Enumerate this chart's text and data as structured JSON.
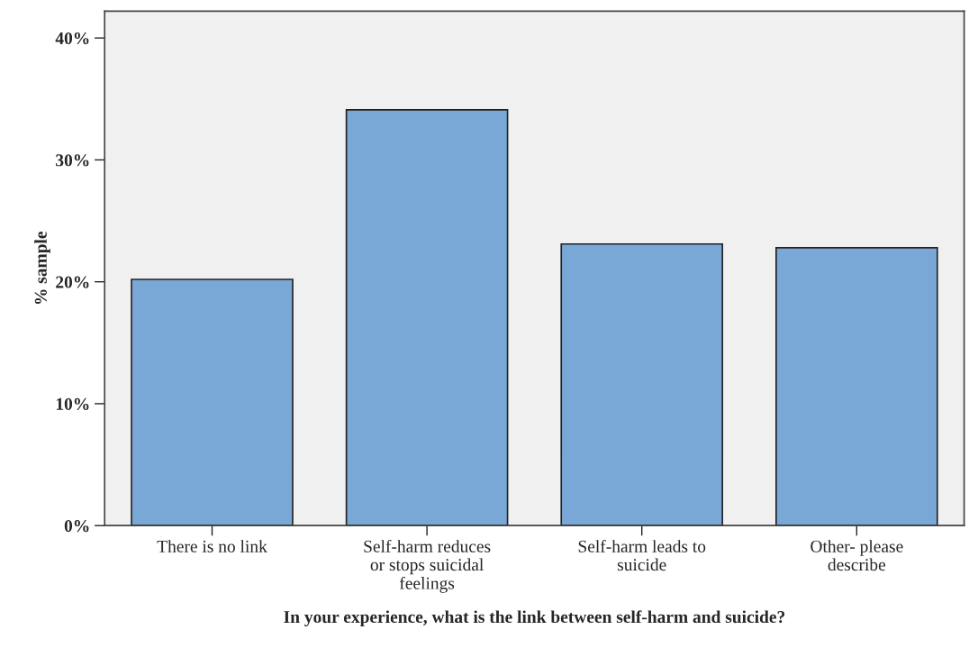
{
  "chart_data": {
    "type": "bar",
    "xlabel": "In your experience, what is the link between self-harm and suicide?",
    "ylabel": "% sample",
    "categories": [
      "There is no link",
      "Self-harm reduces\nor stops suicidal\nfeelings",
      "Self-harm leads to\nsuicide",
      "Other- please\ndescribe"
    ],
    "values": [
      20.2,
      34.1,
      23.1,
      22.8
    ],
    "color": "#7aa8d6",
    "ylim": [
      0,
      42.2
    ],
    "yticks": [
      {
        "value": 0,
        "label": "0%"
      },
      {
        "value": 10,
        "label": "10%"
      },
      {
        "value": 20,
        "label": "20%"
      },
      {
        "value": 30,
        "label": "30%"
      },
      {
        "value": 40,
        "label": "40%"
      }
    ],
    "grid": false,
    "legend": false
  }
}
